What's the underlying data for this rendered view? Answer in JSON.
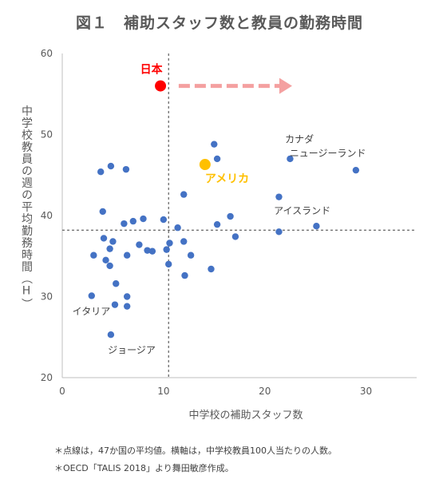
{
  "title": "図１　補助スタッフ数と教員の勤務時間",
  "chart_data": {
    "type": "scatter",
    "title": "図１　補助スタッフ数と教員の勤務時間",
    "xlabel": "中学校の補助スタッフ数",
    "ylabel": "中学校教員の週の平均勤務時間（H）",
    "xlim": [
      0,
      35
    ],
    "ylim": [
      20,
      60
    ],
    "xticks": [
      0,
      10,
      20,
      30
    ],
    "yticks": [
      20,
      30,
      40,
      50,
      60
    ],
    "grid": false,
    "reference_lines": {
      "x": 10.5,
      "y": 38.2
    },
    "series_color": "#4472C4",
    "highlight_colors": {
      "japan": "#FF0000",
      "usa": "#FFC000",
      "arrow": "#F4A0A0"
    },
    "points": [
      {
        "x": 3.8,
        "y": 45.4
      },
      {
        "x": 4.8,
        "y": 46.1
      },
      {
        "x": 6.3,
        "y": 45.7
      },
      {
        "x": 4.0,
        "y": 40.5
      },
      {
        "x": 6.1,
        "y": 39.0
      },
      {
        "x": 7.0,
        "y": 39.3
      },
      {
        "x": 8.0,
        "y": 39.6
      },
      {
        "x": 10.0,
        "y": 39.5
      },
      {
        "x": 4.1,
        "y": 37.2
      },
      {
        "x": 5.0,
        "y": 36.8
      },
      {
        "x": 4.7,
        "y": 35.9
      },
      {
        "x": 3.1,
        "y": 35.1
      },
      {
        "x": 6.4,
        "y": 35.1
      },
      {
        "x": 7.6,
        "y": 36.4
      },
      {
        "x": 8.4,
        "y": 35.7
      },
      {
        "x": 8.9,
        "y": 35.6
      },
      {
        "x": 4.3,
        "y": 34.5
      },
      {
        "x": 4.7,
        "y": 33.8
      },
      {
        "x": 5.3,
        "y": 31.6
      },
      {
        "x": 2.9,
        "y": 30.1
      },
      {
        "x": 5.2,
        "y": 29.0
      },
      {
        "x": 6.4,
        "y": 30.0
      },
      {
        "x": 6.4,
        "y": 28.8
      },
      {
        "x": 4.8,
        "y": 25.3
      },
      {
        "x": 10.3,
        "y": 35.8
      },
      {
        "x": 10.6,
        "y": 36.6
      },
      {
        "x": 10.5,
        "y": 34.0
      },
      {
        "x": 11.4,
        "y": 38.5
      },
      {
        "x": 12.0,
        "y": 36.8
      },
      {
        "x": 12.7,
        "y": 35.1
      },
      {
        "x": 12.1,
        "y": 32.6
      },
      {
        "x": 12.0,
        "y": 42.6
      },
      {
        "x": 14.7,
        "y": 33.4
      },
      {
        "x": 15.0,
        "y": 48.8
      },
      {
        "x": 15.3,
        "y": 47.0
      },
      {
        "x": 15.3,
        "y": 38.9
      },
      {
        "x": 16.6,
        "y": 39.9
      },
      {
        "x": 17.1,
        "y": 37.4
      },
      {
        "x": 21.4,
        "y": 42.3
      },
      {
        "x": 21.4,
        "y": 38.0
      },
      {
        "x": 22.5,
        "y": 47.0
      },
      {
        "x": 25.1,
        "y": 38.7
      },
      {
        "x": 29.0,
        "y": 45.6
      }
    ],
    "highlights": [
      {
        "key": "japan",
        "x": 9.7,
        "y": 56.0
      },
      {
        "key": "usa",
        "x": 14.1,
        "y": 46.3
      }
    ],
    "arrow": {
      "from": [
        11.5,
        56.0
      ],
      "to": [
        22.7,
        56.0
      ]
    },
    "annotations": [
      {
        "key": "japan",
        "text": "日本",
        "x": 7.7,
        "y": 57.6,
        "color": "#FF0000"
      },
      {
        "key": "usa",
        "text": "アメリカ",
        "x": 14.1,
        "y": 44.1,
        "color": "#FFC000"
      },
      {
        "key": "canada",
        "text": "カナダ",
        "x": 22.0,
        "y": 49.0,
        "color": "#404040"
      },
      {
        "key": "nz",
        "text": "ニュージーランド",
        "x": 30.0,
        "y": 47.3,
        "color": "#404040"
      },
      {
        "key": "iceland",
        "text": "アイスランド",
        "x": 26.5,
        "y": 40.2,
        "color": "#404040"
      },
      {
        "key": "italy",
        "text": "イタリア",
        "x": 1.0,
        "y": 27.8,
        "color": "#404040"
      },
      {
        "key": "georgia",
        "text": "ジョージア",
        "x": 4.5,
        "y": 23.0,
        "color": "#404040"
      }
    ]
  },
  "notes": [
    "＊点線は，47か国の平均値。横軸は，中学校教員100人当たりの人数。",
    "＊OECD「TALIS 2018」より舞田敏彦作成。"
  ]
}
